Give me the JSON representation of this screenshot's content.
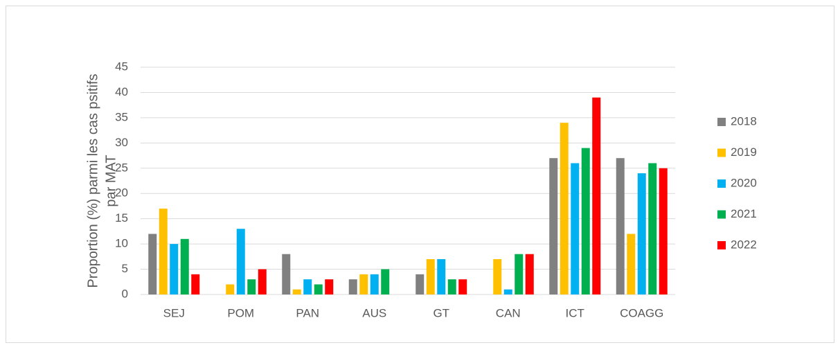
{
  "chart_data": {
    "type": "bar",
    "ylabel": [
      "Proportion (%) parmi les cas psitifs",
      "par MAT"
    ],
    "categories": [
      "SEJ",
      "POM",
      "PAN",
      "AUS",
      "GT",
      "CAN",
      "ICT",
      "COAGG"
    ],
    "series": [
      {
        "name": "2018",
        "color": "#808080",
        "values": [
          12,
          0,
          8,
          3,
          4,
          0,
          27,
          27
        ]
      },
      {
        "name": "2019",
        "color": "#ffc000",
        "values": [
          17,
          2,
          1,
          4,
          7,
          7,
          34,
          12
        ]
      },
      {
        "name": "2020",
        "color": "#00b0f0",
        "values": [
          10,
          13,
          3,
          4,
          7,
          1,
          26,
          24
        ]
      },
      {
        "name": "2021",
        "color": "#00b050",
        "values": [
          11,
          3,
          2,
          5,
          3,
          8,
          29,
          26
        ]
      },
      {
        "name": "2022",
        "color": "#ff0000",
        "values": [
          4,
          5,
          3,
          0,
          3,
          8,
          39,
          25
        ]
      }
    ],
    "ylim": [
      0,
      45
    ],
    "yticks": [
      0,
      5,
      10,
      15,
      20,
      25,
      30,
      35,
      40,
      45
    ],
    "grid": true,
    "legend": "right"
  }
}
